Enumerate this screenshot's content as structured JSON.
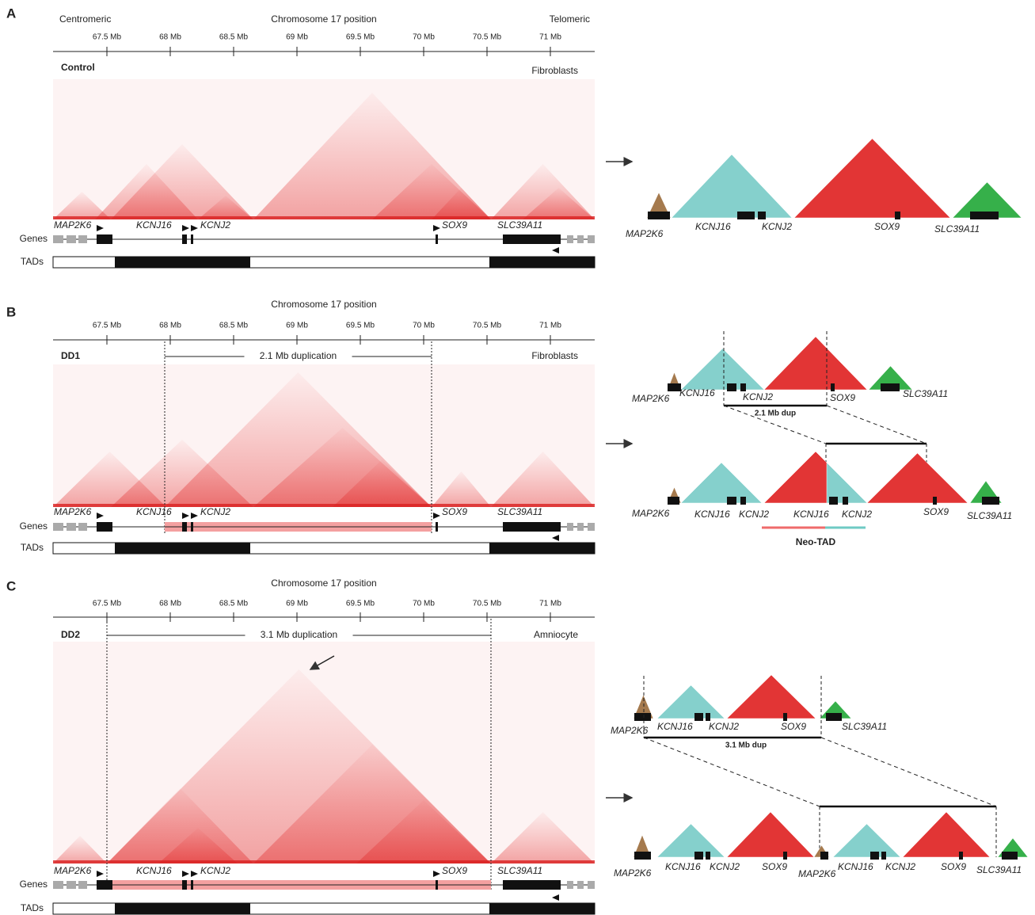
{
  "panels": [
    {
      "label": "A",
      "axis_title": "Chromosome 17 position",
      "centromeric": "Centromeric",
      "telomeric": "Telomeric",
      "ticks": [
        "67.5 Mb",
        "68 Mb",
        "68.5 Mb",
        "69 Mb",
        "69.5 Mb",
        "70 Mb",
        "70.5 Mb",
        "71 Mb"
      ],
      "sample": "Control",
      "cell_type": "Fibroblasts",
      "genes": [
        "MAP2K6",
        "KCNJ16",
        "KCNJ2",
        "SOX9",
        "SLC39A11"
      ],
      "track_labels": [
        "Genes",
        "TADs"
      ],
      "schematic": {
        "labels": [
          "MAP2K6",
          "KCNJ16",
          "KCNJ2",
          "SOX9",
          "SLC39A11"
        ]
      }
    },
    {
      "label": "B",
      "axis_title": "Chromosome 17 position",
      "ticks": [
        "67.5 Mb",
        "68 Mb",
        "68.5 Mb",
        "69 Mb",
        "69.5 Mb",
        "70 Mb",
        "70.5 Mb",
        "71 Mb"
      ],
      "sample": "DD1",
      "cell_type": "Fibroblasts",
      "duplication": "2.1 Mb duplication",
      "genes": [
        "MAP2K6",
        "KCNJ16",
        "KCNJ2",
        "SOX9",
        "SLC39A11"
      ],
      "track_labels": [
        "Genes",
        "TADs"
      ],
      "schematic": {
        "top_labels": [
          "MAP2K6",
          "KCNJ16",
          "KCNJ2",
          "SOX9",
          "SLC39A11"
        ],
        "dup_label": "2.1 Mb dup",
        "bottom_labels": [
          "MAP2K6",
          "KCNJ16",
          "KCNJ2",
          "KCNJ16",
          "KCNJ2",
          "SOX9",
          "SLC39A11"
        ],
        "neo_tad": "Neo-TAD"
      }
    },
    {
      "label": "C",
      "axis_title": "Chromosome 17 position",
      "ticks": [
        "67.5 Mb",
        "68 Mb",
        "68.5 Mb",
        "69 Mb",
        "69.5 Mb",
        "70 Mb",
        "70.5 Mb",
        "71 Mb"
      ],
      "sample": "DD2",
      "cell_type": "Amniocyte",
      "duplication": "3.1 Mb duplication",
      "genes": [
        "MAP2K6",
        "KCNJ16",
        "KCNJ2",
        "SOX9",
        "SLC39A11"
      ],
      "track_labels": [
        "Genes",
        "TADs"
      ],
      "schematic": {
        "top_labels": [
          "MAP2K6",
          "KCNJ16",
          "KCNJ2",
          "SOX9",
          "SLC39A11"
        ],
        "dup_label": "3.1 Mb dup",
        "bottom_labels": [
          "MAP2K6",
          "KCNJ16",
          "KCNJ2",
          "SOX9",
          "MAP2K6",
          "KCNJ16",
          "KCNJ2",
          "SOX9",
          "SLC39A11"
        ]
      }
    }
  ]
}
